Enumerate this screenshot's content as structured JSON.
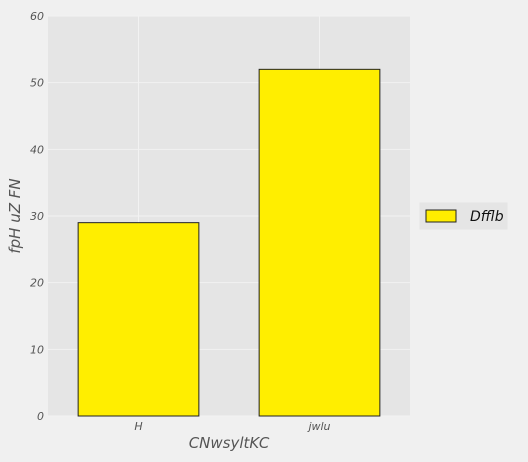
{
  "chart_data": {
    "type": "bar",
    "title": "",
    "xlabel": "CNwsyltKC",
    "ylabel": "fpH uZ FN",
    "categories": [
      "H",
      "jwlu"
    ],
    "series": [
      {
        "name": "Dfflb",
        "values": [
          29,
          52
        ],
        "color": "#ffee00"
      }
    ],
    "ylim": [
      0,
      60
    ],
    "yticks": [
      0,
      10,
      20,
      30,
      40,
      50,
      60
    ],
    "grid": true,
    "legend_position": "right",
    "colors": {
      "background": "#f0f0f0",
      "plot_background": "#e5e5e5",
      "grid": "#f2f2f2",
      "bar_edge": "#222222"
    }
  }
}
